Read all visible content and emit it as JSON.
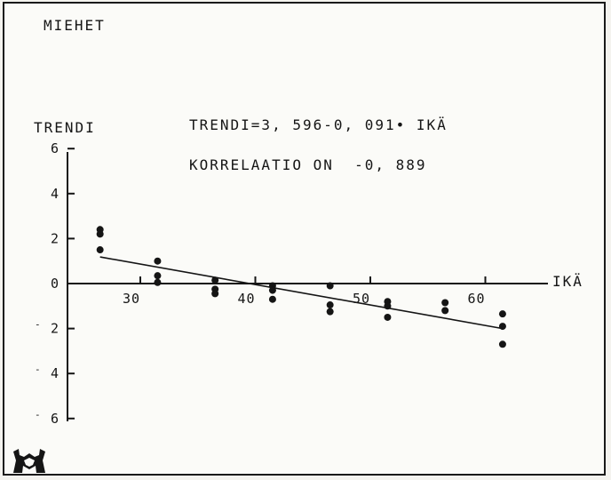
{
  "chart_data": {
    "type": "scatter",
    "title": "MIEHET",
    "equation": "TRENDI=3, 596-0, 091• IKÄ",
    "correlation": "KORRELAATIO ON  -0, 889",
    "xlabel": "IKÄ",
    "ylabel": "TRENDI",
    "xlim": [
      24,
      66
    ],
    "ylim": [
      -6,
      6
    ],
    "x_ticks": [
      30,
      40,
      50,
      60
    ],
    "x_tick_labels": [
      "30",
      "40",
      "50",
      "60"
    ],
    "y_ticks": [
      6,
      4,
      2,
      0,
      -2,
      -4,
      -6
    ],
    "y_tick_labels": [
      "6",
      "4",
      "2",
      "0",
      "2",
      "4",
      "6"
    ],
    "points": [
      {
        "x": 26.5,
        "y": 2.4
      },
      {
        "x": 26.5,
        "y": 2.2
      },
      {
        "x": 26.5,
        "y": 1.5
      },
      {
        "x": 31.5,
        "y": 1.0
      },
      {
        "x": 31.5,
        "y": 0.35
      },
      {
        "x": 31.5,
        "y": 0.05
      },
      {
        "x": 36.5,
        "y": 0.15
      },
      {
        "x": 36.5,
        "y": -0.25
      },
      {
        "x": 36.5,
        "y": -0.45
      },
      {
        "x": 41.5,
        "y": -0.1
      },
      {
        "x": 41.5,
        "y": -0.3
      },
      {
        "x": 41.5,
        "y": -0.7
      },
      {
        "x": 46.5,
        "y": -0.1
      },
      {
        "x": 46.5,
        "y": -0.95
      },
      {
        "x": 46.5,
        "y": -1.25
      },
      {
        "x": 51.5,
        "y": -0.8
      },
      {
        "x": 51.5,
        "y": -1.0
      },
      {
        "x": 51.5,
        "y": -1.5
      },
      {
        "x": 56.5,
        "y": -0.85
      },
      {
        "x": 56.5,
        "y": -1.2
      },
      {
        "x": 61.5,
        "y": -1.35
      },
      {
        "x": 61.5,
        "y": -1.9
      },
      {
        "x": 61.5,
        "y": -2.7
      }
    ],
    "trend_line": {
      "intercept": 3.596,
      "slope": -0.091,
      "x_range": [
        26.5,
        61.5
      ]
    },
    "grid": false,
    "colors": {
      "ink": "#151515",
      "paper": "#fbfbf8"
    }
  },
  "logo_icon": "sfinx-shield-icon"
}
